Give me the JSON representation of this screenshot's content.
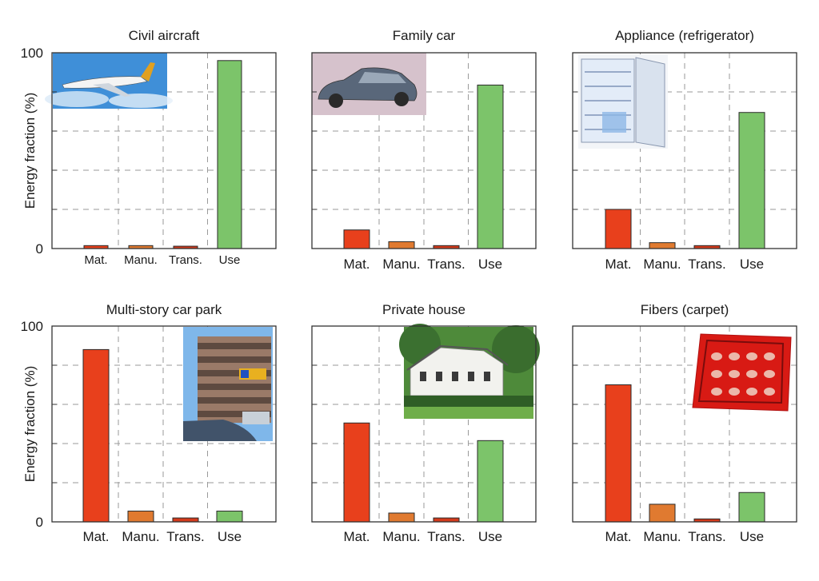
{
  "chart_data": [
    {
      "type": "bar",
      "title": "Civil aircraft",
      "categories": [
        "Mat.",
        "Manu.",
        "Trans.",
        "Use"
      ],
      "values": [
        1.5,
        1.5,
        1.2,
        96
      ],
      "ylim": [
        0,
        100
      ],
      "yticks": [
        "0",
        "100"
      ],
      "ylabel": "Energy fraction (%)",
      "picture": "aircraft-icon"
    },
    {
      "type": "bar",
      "title": "Family car",
      "categories": [
        "Mat.",
        "Manu.",
        "Trans.",
        "Use"
      ],
      "values": [
        9.5,
        3.5,
        1.5,
        83.5
      ],
      "ylim": [
        0,
        100
      ],
      "yticks": [
        "",
        ""
      ],
      "ylabel": "",
      "picture": "car-icon"
    },
    {
      "type": "bar",
      "title": "Appliance (refrigerator)",
      "categories": [
        "Mat.",
        "Manu.",
        "Trans.",
        "Use"
      ],
      "values": [
        20,
        3,
        1.5,
        69.5
      ],
      "ylim": [
        0,
        100
      ],
      "yticks": [
        "",
        ""
      ],
      "ylabel": "",
      "picture": "refrigerator-icon"
    },
    {
      "type": "bar",
      "title": "Multi-story car park",
      "categories": [
        "Mat.",
        "Manu.",
        "Trans.",
        "Use"
      ],
      "values": [
        88,
        5.5,
        2,
        5.5
      ],
      "ylim": [
        0,
        100
      ],
      "yticks": [
        "0",
        "100"
      ],
      "ylabel": "Energy fraction (%)",
      "picture": "car-park-icon"
    },
    {
      "type": "bar",
      "title": "Private house",
      "categories": [
        "Mat.",
        "Manu.",
        "Trans.",
        "Use"
      ],
      "values": [
        50.5,
        4.5,
        2,
        41.5
      ],
      "ylim": [
        0,
        100
      ],
      "yticks": [
        "",
        ""
      ],
      "ylabel": "",
      "picture": "house-icon"
    },
    {
      "type": "bar",
      "title": "Fibers (carpet)",
      "categories": [
        "Mat.",
        "Manu.",
        "Trans.",
        "Use"
      ],
      "values": [
        70,
        9,
        1.5,
        15
      ],
      "ylim": [
        0,
        100
      ],
      "yticks": [
        "",
        ""
      ],
      "ylabel": "",
      "picture": "carpet-icon"
    }
  ],
  "colors": {
    "Mat.": "#e8401c",
    "Manu.": "#e07a30",
    "Trans.": "#d23a1c",
    "Use": "#7cc46a"
  },
  "grid": true
}
